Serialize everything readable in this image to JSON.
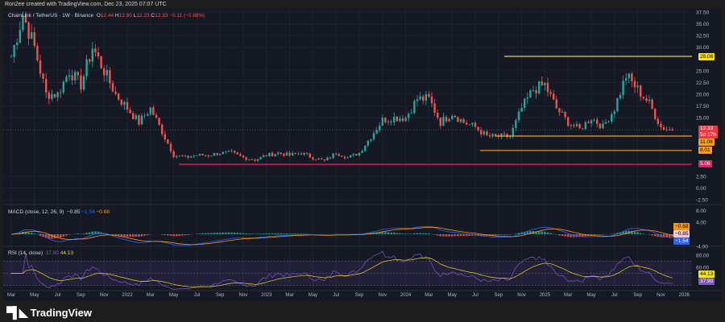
{
  "credit": "Ron2ee created with TradingView.com, Dec 23, 2025 07:07 UTC",
  "symbol": {
    "name": "ChainLink / TetherUS · 1W · Binance",
    "o_label": "O",
    "open": "12.44",
    "h_label": "H",
    "high": "12.95",
    "l_label": "L",
    "low": "12.23",
    "c_label": "C",
    "close": "12.33",
    "change": "−0.11 (−0.88%)"
  },
  "price_tags": {
    "last": "12.33",
    "countdown": "5d 17h",
    "level_top": "28.06",
    "level_mid": "11.08",
    "level_low": "8.01",
    "level_support": "5.06"
  },
  "macd": {
    "label": "MACD (close, 12, 26, 9)",
    "hist": "−0.85",
    "macd": "−1.54",
    "signal": "−0.68",
    "axis": [
      "8.00",
      "4.00",
      "-4.00"
    ]
  },
  "rsi": {
    "label": "RSI (14, close)",
    "rsi": "37.90",
    "ma": "44.13",
    "axis": [
      "80.00",
      "60.00"
    ]
  },
  "brand": "TradingView",
  "colors": {
    "up": "#26a69a",
    "down": "#ef5350",
    "yellow": "#e9d41f",
    "orange": "#f7a21b",
    "pink": "#e91e63",
    "macd": "#2962ff",
    "signal": "#ff9800",
    "rsi": "#7e57c2"
  },
  "chart_data": {
    "type": "candlestick",
    "interval": "1W",
    "y_ticks": [
      "37.50",
      "35.00",
      "32.50",
      "30.00",
      "25.00",
      "22.50",
      "20.00",
      "17.50",
      "15.00",
      "2.50",
      "0.00",
      "-2.50"
    ],
    "ylim": [
      -2.5,
      37.5
    ],
    "x_ticks": [
      "Mar",
      "May",
      "Jul",
      "Sep",
      "Nov",
      "2022",
      "Mar",
      "May",
      "Jul",
      "Sep",
      "Nov",
      "2023",
      "Mar",
      "May",
      "Jul",
      "Sep",
      "Nov",
      "2024",
      "Mar",
      "May",
      "Jul",
      "Sep",
      "Nov",
      "2025",
      "Mar",
      "May",
      "Jul",
      "Sep",
      "Nov",
      "2026"
    ],
    "monthly_close_estimates": [
      28,
      37,
      30,
      20,
      20,
      25,
      22,
      30,
      25,
      20,
      17,
      14,
      17,
      12,
      7,
      6.5,
      7,
      7,
      7.5,
      7.5,
      6.5,
      6,
      7,
      7.5,
      7,
      7.5,
      6.5,
      5.8,
      7.5,
      6.5,
      7.5,
      11,
      14.5,
      15,
      15,
      19,
      19,
      14,
      16,
      14,
      13,
      11,
      11,
      11,
      17,
      21,
      22,
      17,
      14,
      12.5,
      15,
      13,
      17,
      24,
      21,
      18,
      13,
      12.33
    ],
    "horizontal_levels": [
      28.06,
      11.08,
      8.01,
      5.06
    ]
  }
}
